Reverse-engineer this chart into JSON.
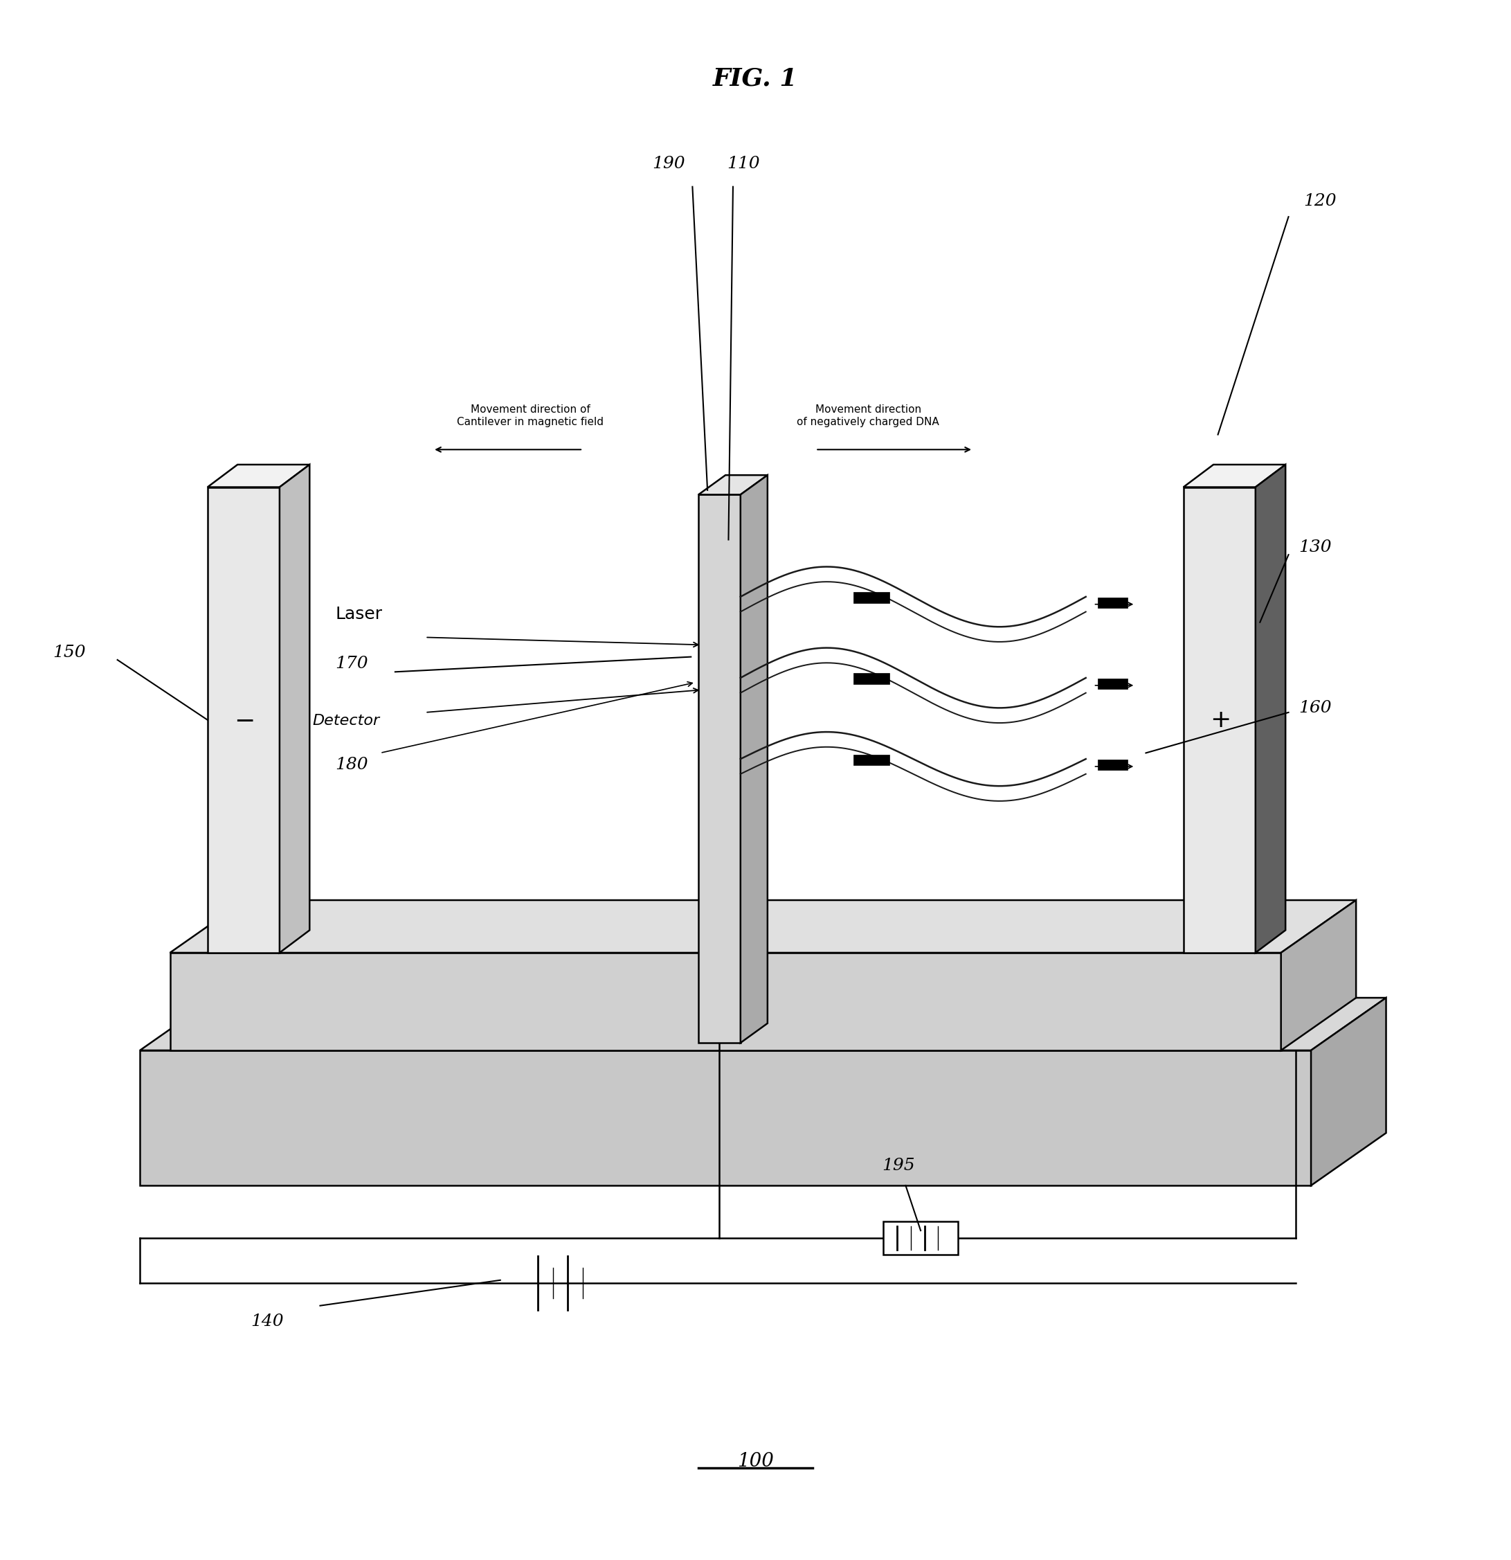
{
  "title": "FIG. 1",
  "bg_color": "#ffffff",
  "line_color": "#000000",
  "fill_light": "#f0f0f0",
  "fill_mid": "#d8d8d8",
  "fill_dark": "#888888",
  "labels": {
    "100": "100",
    "110": "110",
    "120": "120",
    "130": "130",
    "140": "140",
    "150": "150",
    "160": "160",
    "170": "170",
    "180": "180",
    "190": "190",
    "195": "195"
  },
  "text_laser": "Laser",
  "text_detector": "Detector",
  "text_cantilever_dir": "Movement direction of\nCantilever in magnetic field",
  "text_dna_dir": "Movement direction\nof negatively charged DNA",
  "fig_width": 21.83,
  "fig_height": 22.53
}
